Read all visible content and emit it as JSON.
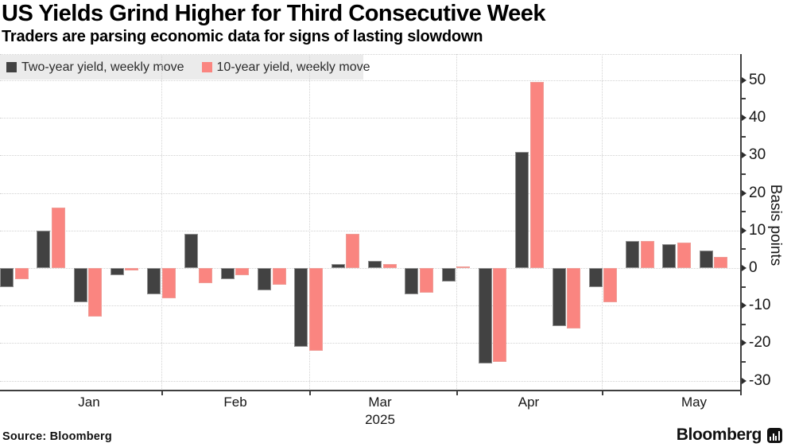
{
  "header": {
    "title": "US Yields Grind Higher for Third Consecutive Week",
    "subtitle": "Traders are parsing economic data for signs of lasting slowdown"
  },
  "legend": {
    "items": [
      {
        "label": "Two-year yield, weekly move",
        "color": "#424242"
      },
      {
        "label": "10-year yield, weekly move",
        "color": "#fa8580"
      }
    ]
  },
  "y_axis": {
    "unit_label": "Basis points",
    "tick_labels": [
      "50",
      "40",
      "30",
      "20",
      "10",
      "0",
      "-10",
      "-20",
      "-30"
    ],
    "tick_values": [
      50,
      40,
      30,
      20,
      10,
      0,
      -10,
      -20,
      -30
    ]
  },
  "x_axis": {
    "month_labels": [
      "Jan",
      "Feb",
      "Mar",
      "Apr",
      "May"
    ],
    "year_label": "2025"
  },
  "footer": {
    "source": "Source:  Bloomberg",
    "logo_text": "Bloomberg",
    "logo_icon": "bloomberg-terminal-icon"
  },
  "colors": {
    "two_year_bar": "#424242",
    "ten_year_bar": "#fa8580",
    "legend_background": "#ebebeb",
    "gridline": "#d2d2d2",
    "axis": "#3f3f3f",
    "text": "#161616"
  },
  "chart_data": {
    "type": "bar",
    "title": "US Yields Grind Higher for Third Consecutive Week",
    "subtitle": "Traders are parsing economic data for signs of lasting slowdown",
    "xlabel": "",
    "ylabel": "Basis points",
    "ylim": [
      -30,
      50
    ],
    "grid": true,
    "legend_position": "top-left",
    "x_unit": "week",
    "x": [
      1,
      2,
      3,
      4,
      5,
      6,
      7,
      8,
      9,
      10,
      11,
      12,
      13,
      14,
      15,
      16,
      17,
      18,
      19,
      20
    ],
    "month_tick_labels": [
      "Jan",
      "Feb",
      "Mar",
      "Apr",
      "May"
    ],
    "year": "2025",
    "series": [
      {
        "name": "Two-year yield, weekly move",
        "color": "#424242",
        "values": [
          -5,
          10,
          -9,
          -2,
          -7,
          9,
          -3,
          -6,
          -21,
          1,
          2,
          -7,
          -3.5,
          -25.5,
          31,
          -15.5,
          -5,
          7.3,
          6.3,
          4.7
        ]
      },
      {
        "name": "10-year yield, weekly move",
        "color": "#fa8580",
        "values": [
          -3,
          16,
          -13,
          -0.6,
          -8,
          -4,
          -2,
          -4.5,
          -22,
          9,
          1,
          -6.5,
          0.5,
          -25,
          49.5,
          -16,
          -9,
          7.2,
          6.8,
          3
        ]
      }
    ]
  }
}
